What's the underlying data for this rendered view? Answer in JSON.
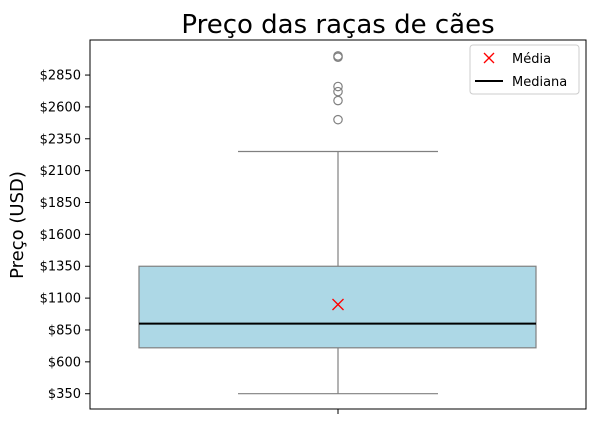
{
  "chart_data": {
    "type": "box",
    "title": "Preço das raças de cães",
    "xlabel": "",
    "ylabel": "Preço (USD)",
    "ylim": [
      230,
      3125
    ],
    "y_ticks": [
      350,
      600,
      850,
      1100,
      1350,
      1600,
      1850,
      2100,
      2350,
      2600,
      2850
    ],
    "y_tick_labels": [
      "$350",
      "$600",
      "$850",
      "$1100",
      "$1350",
      "$1600",
      "$1850",
      "$2100",
      "$2350",
      "$2600",
      "$2850"
    ],
    "box": {
      "whisker_low": 350,
      "q1": 710,
      "median": 900,
      "q3": 1350,
      "whisker_high": 2250,
      "mean": 1050,
      "outliers": [
        2500,
        2650,
        2720,
        2760,
        2990,
        3000
      ]
    },
    "colors": {
      "box_fill": "#add8e6",
      "box_edge": "#808080",
      "median_line": "#000000",
      "mean_marker": "#ff0000"
    },
    "legend": {
      "placement": "top-right",
      "entries": [
        {
          "label": "Média",
          "marker": "x",
          "color": "#ff0000"
        },
        {
          "label": "Mediana",
          "marker": "line",
          "color": "#000000"
        }
      ]
    },
    "grid": false
  }
}
